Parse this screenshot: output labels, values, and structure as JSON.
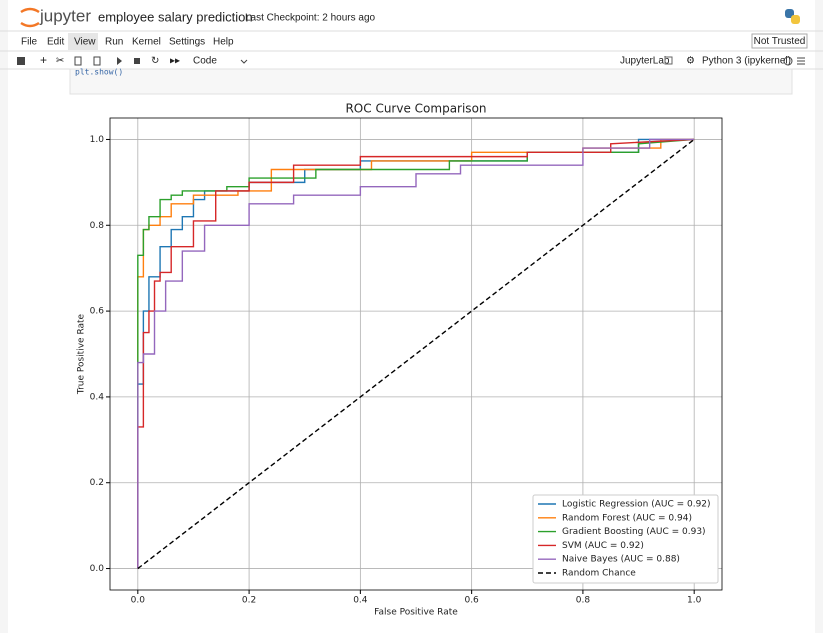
{
  "header": {
    "logo": "jupyter",
    "title": "employee salary prediction",
    "checkpoint": "Last Checkpoint: 2 hours ago",
    "trust": "Not Trusted"
  },
  "menu": {
    "items": [
      "File",
      "Edit",
      "View",
      "Run",
      "Kernel",
      "Settings",
      "Help"
    ]
  },
  "toolbar": {
    "cell_type": "Code",
    "jupyterlab": "JupyterLab",
    "kernel": "Python 3 (ipykernel)"
  },
  "cell": {
    "code": "plt.show()"
  },
  "chart_data": {
    "type": "line",
    "title": "ROC Curve Comparison",
    "x_label": "False Positive Rate",
    "y_label": "True Positive Rate",
    "xlim": [
      -0.05,
      1.05
    ],
    "ylim": [
      -0.05,
      1.05
    ],
    "xticks": [
      {
        "value": 0,
        "label": "0.0"
      },
      0.2,
      0.4,
      0.6,
      0.8,
      {
        "value": 1,
        "label": "1.0"
      }
    ],
    "yticks": [
      {
        "value": 0,
        "label": "0.0"
      },
      0.2,
      0.4,
      0.6,
      0.8,
      {
        "value": 1,
        "label": "1.0"
      }
    ],
    "grid": true,
    "legend_loc": "lower right",
    "series": [
      {
        "name": "Logistic Regression (AUC = 0.92)",
        "color": "#1f77b4",
        "linestyle": "solid",
        "x": [
          0,
          0,
          0.01,
          0.01,
          0.02,
          0.02,
          0.04,
          0.04,
          0.06,
          0.06,
          0.08,
          0.08,
          0.1,
          0.1,
          0.12,
          0.12,
          0.2,
          0.2,
          0.3,
          0.3,
          0.4,
          0.4,
          0.7,
          0.7,
          0.9,
          0.9,
          1.0
        ],
        "values": [
          0,
          0.43,
          0.43,
          0.6,
          0.6,
          0.68,
          0.68,
          0.75,
          0.75,
          0.79,
          0.79,
          0.82,
          0.82,
          0.86,
          0.86,
          0.88,
          0.88,
          0.9,
          0.9,
          0.93,
          0.93,
          0.95,
          0.95,
          0.97,
          0.97,
          1.0,
          1.0
        ]
      },
      {
        "name": "Random Forest (AUC = 0.94)",
        "color": "#ff7f0e",
        "linestyle": "solid",
        "x": [
          0,
          0,
          0.01,
          0.01,
          0.02,
          0.02,
          0.04,
          0.04,
          0.06,
          0.06,
          0.1,
          0.1,
          0.18,
          0.18,
          0.24,
          0.24,
          0.42,
          0.42,
          0.6,
          0.6,
          0.8,
          0.8,
          0.94,
          0.94,
          1.0
        ],
        "values": [
          0,
          0.68,
          0.68,
          0.79,
          0.79,
          0.8,
          0.8,
          0.82,
          0.82,
          0.85,
          0.85,
          0.87,
          0.87,
          0.88,
          0.88,
          0.93,
          0.93,
          0.95,
          0.95,
          0.97,
          0.97,
          0.98,
          0.98,
          1.0,
          1.0
        ]
      },
      {
        "name": "Gradient Boosting (AUC = 0.93)",
        "color": "#2ca02c",
        "linestyle": "solid",
        "x": [
          0,
          0,
          0.01,
          0.01,
          0.02,
          0.02,
          0.04,
          0.04,
          0.06,
          0.06,
          0.08,
          0.08,
          0.16,
          0.16,
          0.2,
          0.2,
          0.32,
          0.32,
          0.56,
          0.56,
          0.7,
          0.7,
          0.9,
          0.9,
          1.0
        ],
        "values": [
          0,
          0.73,
          0.73,
          0.79,
          0.79,
          0.82,
          0.82,
          0.86,
          0.86,
          0.87,
          0.87,
          0.88,
          0.88,
          0.89,
          0.89,
          0.91,
          0.91,
          0.93,
          0.93,
          0.95,
          0.95,
          0.97,
          0.97,
          0.99,
          1.0
        ]
      },
      {
        "name": "SVM (AUC = 0.92)",
        "color": "#d62728",
        "linestyle": "solid",
        "x": [
          0,
          0,
          0.01,
          0.01,
          0.02,
          0.02,
          0.03,
          0.03,
          0.04,
          0.04,
          0.06,
          0.06,
          0.1,
          0.1,
          0.14,
          0.14,
          0.2,
          0.2,
          0.28,
          0.28,
          0.4,
          0.4,
          0.7,
          0.7,
          0.85,
          0.85,
          1.0
        ],
        "values": [
          0,
          0.33,
          0.33,
          0.55,
          0.55,
          0.6,
          0.6,
          0.67,
          0.67,
          0.69,
          0.69,
          0.75,
          0.75,
          0.81,
          0.81,
          0.88,
          0.88,
          0.9,
          0.9,
          0.94,
          0.94,
          0.96,
          0.96,
          0.97,
          0.97,
          0.99,
          1.0
        ]
      },
      {
        "name": "Naive Bayes (AUC = 0.88)",
        "color": "#9467bd",
        "linestyle": "solid",
        "x": [
          0,
          0,
          0.01,
          0.01,
          0.03,
          0.03,
          0.05,
          0.05,
          0.08,
          0.08,
          0.12,
          0.12,
          0.2,
          0.2,
          0.28,
          0.28,
          0.4,
          0.4,
          0.5,
          0.5,
          0.58,
          0.58,
          0.8,
          0.8,
          0.92,
          0.92,
          1.0
        ],
        "values": [
          0,
          0.48,
          0.48,
          0.5,
          0.5,
          0.6,
          0.6,
          0.67,
          0.67,
          0.74,
          0.74,
          0.8,
          0.8,
          0.85,
          0.85,
          0.87,
          0.87,
          0.89,
          0.89,
          0.92,
          0.92,
          0.94,
          0.94,
          0.98,
          0.98,
          1.0,
          1.0
        ]
      },
      {
        "name": "Random Chance",
        "color": "#000000",
        "linestyle": "dashed",
        "x": [
          0,
          1
        ],
        "values": [
          0,
          1
        ]
      }
    ]
  }
}
